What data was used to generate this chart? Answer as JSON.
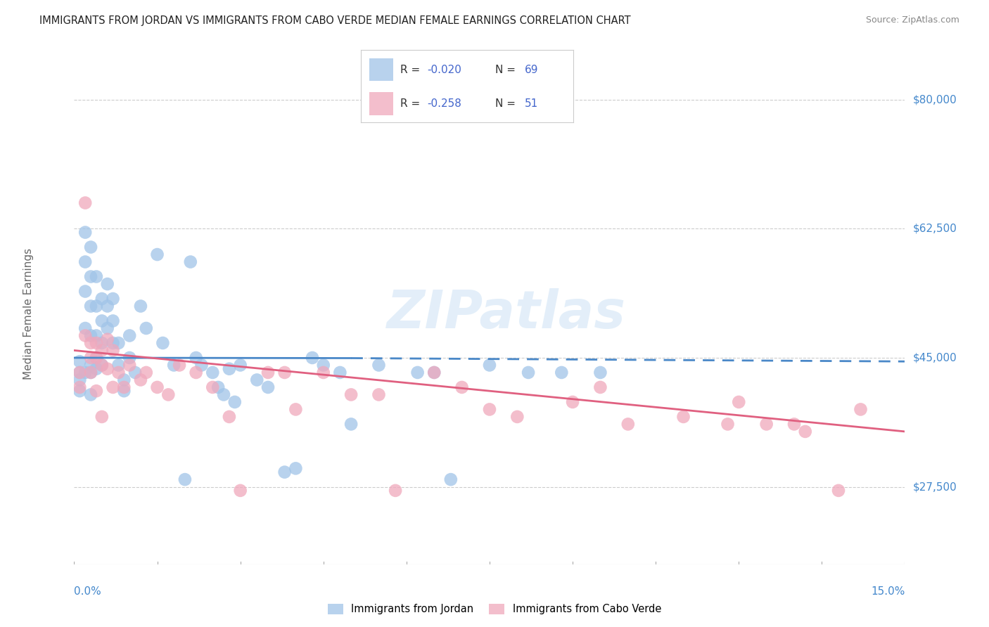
{
  "title": "IMMIGRANTS FROM JORDAN VS IMMIGRANTS FROM CABO VERDE MEDIAN FEMALE EARNINGS CORRELATION CHART",
  "source": "Source: ZipAtlas.com",
  "ylabel": "Median Female Earnings",
  "ytick_labels": [
    "$27,500",
    "$45,000",
    "$62,500",
    "$80,000"
  ],
  "ytick_values": [
    27500,
    45000,
    62500,
    80000
  ],
  "ylim": [
    17000,
    85000
  ],
  "xlim": [
    0.0,
    0.15
  ],
  "jordan_color": "#a0c4e8",
  "cabo_verde_color": "#f0a8bc",
  "jordan_line_color": "#4a88c8",
  "cabo_verde_line_color": "#e06080",
  "background_color": "#ffffff",
  "grid_color": "#cccccc",
  "legend_text_color": "#4466cc",
  "watermark": "ZIPatlas",
  "r_jordan": -0.02,
  "n_jordan": 69,
  "r_cabo": -0.258,
  "n_cabo": 51,
  "legend_label_jordan": "Immigrants from Jordan",
  "legend_label_cabo": "Immigrants from Cabo Verde",
  "jordan_x": [
    0.001,
    0.001,
    0.001,
    0.001,
    0.002,
    0.002,
    0.002,
    0.002,
    0.002,
    0.003,
    0.003,
    0.003,
    0.003,
    0.003,
    0.003,
    0.003,
    0.004,
    0.004,
    0.004,
    0.004,
    0.004,
    0.005,
    0.005,
    0.005,
    0.005,
    0.006,
    0.006,
    0.006,
    0.007,
    0.007,
    0.007,
    0.008,
    0.008,
    0.009,
    0.009,
    0.01,
    0.01,
    0.011,
    0.012,
    0.013,
    0.015,
    0.016,
    0.018,
    0.02,
    0.021,
    0.022,
    0.023,
    0.025,
    0.026,
    0.027,
    0.028,
    0.029,
    0.03,
    0.033,
    0.035,
    0.038,
    0.04,
    0.043,
    0.045,
    0.048,
    0.05,
    0.055,
    0.062,
    0.065,
    0.068,
    0.075,
    0.082,
    0.088,
    0.095
  ],
  "jordan_y": [
    44500,
    43000,
    42000,
    40500,
    62000,
    58000,
    54000,
    49000,
    43000,
    60000,
    56000,
    52000,
    48000,
    44000,
    43000,
    40000,
    56000,
    52000,
    48000,
    45000,
    43500,
    53000,
    50000,
    47000,
    44000,
    55000,
    52000,
    49000,
    53000,
    50000,
    47000,
    47000,
    44000,
    42000,
    40500,
    48000,
    45000,
    43000,
    52000,
    49000,
    59000,
    47000,
    44000,
    28500,
    58000,
    45000,
    44000,
    43000,
    41000,
    40000,
    43500,
    39000,
    44000,
    42000,
    41000,
    29500,
    30000,
    45000,
    44000,
    43000,
    36000,
    44000,
    43000,
    43000,
    28500,
    44000,
    43000,
    43000,
    43000
  ],
  "cabo_verde_x": [
    0.001,
    0.001,
    0.002,
    0.002,
    0.003,
    0.003,
    0.003,
    0.004,
    0.004,
    0.004,
    0.005,
    0.005,
    0.005,
    0.006,
    0.006,
    0.007,
    0.007,
    0.008,
    0.009,
    0.01,
    0.012,
    0.013,
    0.015,
    0.017,
    0.019,
    0.022,
    0.025,
    0.028,
    0.03,
    0.035,
    0.038,
    0.04,
    0.045,
    0.05,
    0.055,
    0.058,
    0.065,
    0.07,
    0.075,
    0.08,
    0.09,
    0.095,
    0.1,
    0.11,
    0.118,
    0.12,
    0.125,
    0.13,
    0.132,
    0.138,
    0.142
  ],
  "cabo_verde_y": [
    43000,
    41000,
    66000,
    48000,
    47000,
    45000,
    43000,
    47000,
    45000,
    40500,
    46000,
    44000,
    37000,
    47500,
    43500,
    46000,
    41000,
    43000,
    41000,
    44000,
    42000,
    43000,
    41000,
    40000,
    44000,
    43000,
    41000,
    37000,
    27000,
    43000,
    43000,
    38000,
    43000,
    40000,
    40000,
    27000,
    43000,
    41000,
    38000,
    37000,
    39000,
    41000,
    36000,
    37000,
    36000,
    39000,
    36000,
    36000,
    35000,
    27000,
    38000
  ]
}
